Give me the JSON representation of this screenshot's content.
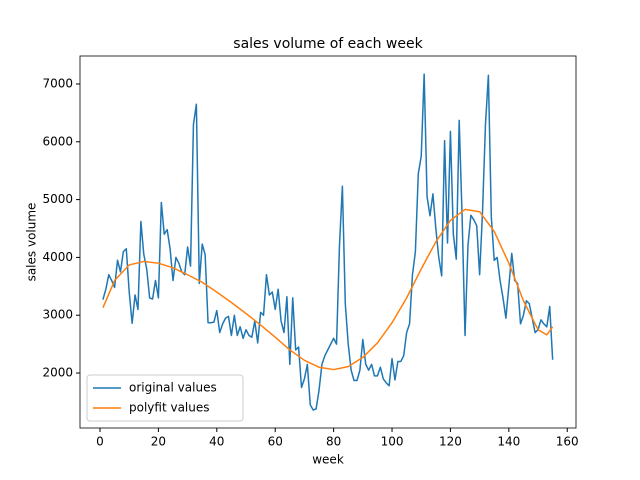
{
  "chart_data": {
    "type": "line",
    "title": "sales volume of each week",
    "x_label": "week",
    "y_label": "sales volume",
    "xlim": [
      -6.85,
      163
    ],
    "ylim": [
      1049,
      7484
    ],
    "xticks": [
      0,
      20,
      40,
      60,
      80,
      100,
      120,
      140,
      160
    ],
    "yticks": [
      2000,
      3000,
      4000,
      5000,
      6000,
      7000
    ],
    "legend": "lower left",
    "series": [
      {
        "name": "original values",
        "color": "#1f77b4",
        "x": [
          1,
          2,
          3,
          4,
          5,
          6,
          7,
          8,
          9,
          10,
          11,
          12,
          13,
          14,
          15,
          16,
          17,
          18,
          19,
          20,
          21,
          22,
          23,
          24,
          25,
          26,
          27,
          28,
          29,
          30,
          31,
          32,
          33,
          34,
          35,
          36,
          37,
          38,
          39,
          40,
          41,
          42,
          43,
          44,
          45,
          46,
          47,
          48,
          49,
          50,
          51,
          52,
          53,
          54,
          55,
          56,
          57,
          58,
          59,
          60,
          61,
          62,
          63,
          64,
          65,
          66,
          67,
          68,
          69,
          70,
          71,
          72,
          73,
          74,
          75,
          76,
          77,
          78,
          79,
          80,
          81,
          82,
          83,
          84,
          85,
          86,
          87,
          88,
          89,
          90,
          91,
          92,
          93,
          94,
          95,
          96,
          97,
          98,
          99,
          100,
          101,
          102,
          103,
          104,
          105,
          106,
          107,
          108,
          109,
          110,
          111,
          112,
          113,
          114,
          115,
          116,
          117,
          118,
          119,
          120,
          121,
          122,
          123,
          124,
          125,
          126,
          127,
          128,
          129,
          130,
          131,
          132,
          133,
          134,
          135,
          136,
          137,
          138,
          139,
          140,
          141,
          142,
          143,
          144,
          145,
          146,
          147,
          148,
          149,
          150,
          151,
          152,
          153,
          154,
          155
        ],
        "values": [
          3270,
          3450,
          3700,
          3600,
          3480,
          3950,
          3750,
          4100,
          4150,
          3400,
          2860,
          3350,
          3100,
          4620,
          4050,
          3800,
          3300,
          3280,
          3600,
          3300,
          4950,
          4400,
          4480,
          4150,
          3600,
          4000,
          3900,
          3750,
          3700,
          4180,
          3850,
          6300,
          6650,
          3550,
          4230,
          4050,
          2870,
          2870,
          2880,
          3080,
          2700,
          2850,
          2950,
          2980,
          2650,
          3000,
          2650,
          2800,
          2600,
          2750,
          2650,
          2620,
          2900,
          2520,
          3050,
          3000,
          3700,
          3350,
          3400,
          3100,
          3450,
          2900,
          2700,
          3320,
          2150,
          3300,
          2400,
          2450,
          1750,
          1900,
          2150,
          1450,
          1360,
          1380,
          1700,
          2150,
          2300,
          2400,
          2500,
          2600,
          2500,
          4200,
          5230,
          3200,
          2500,
          2050,
          1870,
          1870,
          2050,
          2580,
          2150,
          2050,
          2150,
          1950,
          1950,
          2100,
          1900,
          1830,
          1780,
          2250,
          1880,
          2200,
          2200,
          2300,
          2700,
          2850,
          3700,
          4100,
          5450,
          5750,
          7170,
          5050,
          4720,
          5100,
          4500,
          4000,
          3680,
          6020,
          4250,
          6180,
          4400,
          3970,
          6370,
          4700,
          2650,
          4200,
          4730,
          4650,
          4550,
          3700,
          4800,
          6300,
          7150,
          4700,
          3950,
          4000,
          3600,
          3300,
          2950,
          3500,
          4070,
          3600,
          3550,
          2850,
          3000,
          3250,
          3200,
          2950,
          2700,
          2750,
          2920,
          2850,
          2800,
          3150,
          2230
        ]
      },
      {
        "name": "polyfit values",
        "color": "#ff7f0e",
        "x": [
          1,
          5,
          10,
          15,
          20,
          25,
          30,
          35,
          40,
          45,
          50,
          55,
          60,
          65,
          70,
          75,
          80,
          85,
          90,
          95,
          100,
          105,
          110,
          115,
          120,
          125,
          130,
          135,
          140,
          145,
          150,
          153,
          155
        ],
        "values": [
          3130,
          3600,
          3870,
          3930,
          3900,
          3820,
          3700,
          3570,
          3400,
          3220,
          3030,
          2830,
          2620,
          2400,
          2220,
          2100,
          2060,
          2110,
          2270,
          2520,
          2870,
          3300,
          3800,
          4270,
          4640,
          4830,
          4790,
          4450,
          3900,
          3250,
          2750,
          2660,
          2800
        ]
      }
    ]
  }
}
